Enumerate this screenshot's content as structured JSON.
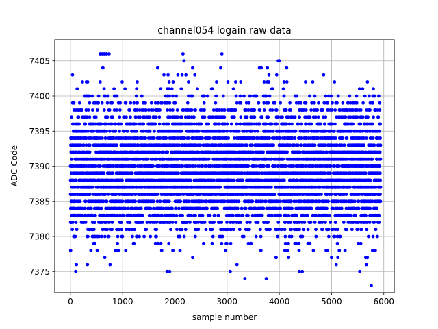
{
  "chart_data": {
    "type": "scatter",
    "title": "channel054 logain raw data",
    "xlabel": "sample number",
    "ylabel": "ADC Code",
    "xlim": [
      -300,
      6200
    ],
    "ylim": [
      7372,
      7408
    ],
    "xticks": [
      0,
      1000,
      2000,
      3000,
      4000,
      5000,
      6000
    ],
    "yticks": [
      7375,
      7380,
      7385,
      7390,
      7395,
      7400,
      7405
    ],
    "grid": true,
    "marker_color": "#0000ff",
    "sample_count": 5940,
    "value_range": [
      7373,
      7406
    ],
    "distribution": {
      "mean": 7390,
      "std": 4.3,
      "value_weights": {
        "7373": 0.05,
        "7374": 0.05,
        "7375": 0.15,
        "7376": 0.15,
        "7377": 0.5,
        "7378": 0.8,
        "7379": 1.5,
        "7380": 3,
        "7381": 5,
        "7382": 7,
        "7383": 10,
        "7384": 13,
        "7385": 16,
        "7386": 19,
        "7387": 21,
        "7388": 22,
        "7389": 22,
        "7390": 22,
        "7391": 21,
        "7392": 20,
        "7393": 18,
        "7394": 16,
        "7395": 13,
        "7396": 11,
        "7397": 8,
        "7398": 6,
        "7399": 4,
        "7400": 2.5,
        "7401": 1.2,
        "7402": 0.6,
        "7403": 0.3,
        "7404": 0.2,
        "7405": 0.1,
        "7406": 0.1
      }
    },
    "notable_points": [
      {
        "x": 570,
        "y": 7406
      },
      {
        "x": 610,
        "y": 7406
      },
      {
        "x": 650,
        "y": 7406
      },
      {
        "x": 690,
        "y": 7406
      },
      {
        "x": 2900,
        "y": 7406
      },
      {
        "x": 3980,
        "y": 7405
      },
      {
        "x": 4000,
        "y": 7405
      },
      {
        "x": 2340,
        "y": 7404
      },
      {
        "x": 3620,
        "y": 7404
      },
      {
        "x": 4140,
        "y": 7404
      },
      {
        "x": 40,
        "y": 7403
      },
      {
        "x": 1790,
        "y": 7403
      },
      {
        "x": 1870,
        "y": 7403
      },
      {
        "x": 3950,
        "y": 7403
      },
      {
        "x": 330,
        "y": 7402
      },
      {
        "x": 570,
        "y": 7402
      },
      {
        "x": 2260,
        "y": 7402
      },
      {
        "x": 3710,
        "y": 7402
      },
      {
        "x": 3770,
        "y": 7402
      },
      {
        "x": 4640,
        "y": 7402
      },
      {
        "x": 760,
        "y": 7376
      },
      {
        "x": 5090,
        "y": 7376
      },
      {
        "x": 1850,
        "y": 7375
      },
      {
        "x": 1900,
        "y": 7375
      },
      {
        "x": 3060,
        "y": 7375
      },
      {
        "x": 4440,
        "y": 7375
      },
      {
        "x": 5540,
        "y": 7375
      },
      {
        "x": 3750,
        "y": 7374
      },
      {
        "x": 5760,
        "y": 7373
      }
    ]
  }
}
